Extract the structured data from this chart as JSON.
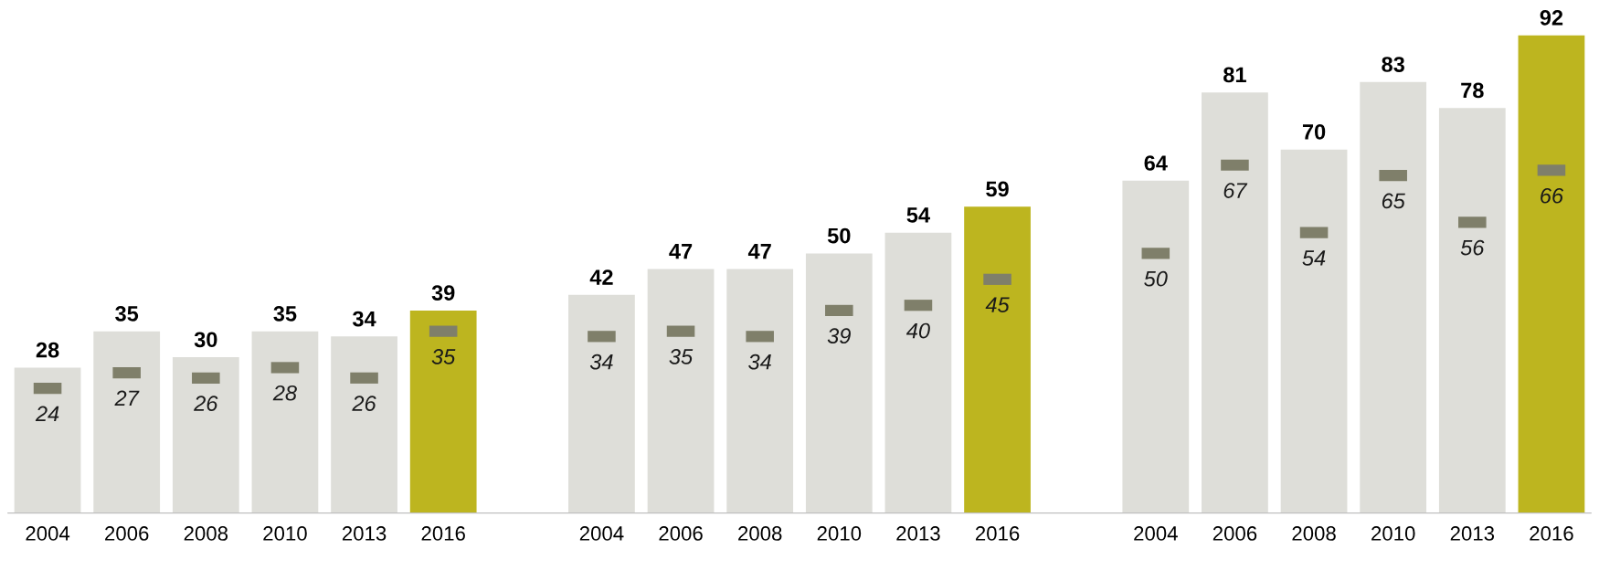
{
  "chart_data": {
    "type": "bar",
    "categories": [
      "2004",
      "2006",
      "2008",
      "2010",
      "2013",
      "2016",
      null,
      "2004",
      "2006",
      "2008",
      "2010",
      "2013",
      "2016",
      null,
      "2004",
      "2006",
      "2008",
      "2010",
      "2013",
      "2016"
    ],
    "series": [
      {
        "values": [
          28,
          35,
          30,
          35,
          34,
          39,
          null,
          42,
          47,
          47,
          50,
          54,
          59,
          null,
          64,
          81,
          70,
          83,
          78,
          92
        ],
        "colors": [
          "#deded9",
          "#deded9",
          "#deded9",
          "#deded9",
          "#deded9",
          "#bdb51f",
          null,
          "#deded9",
          "#deded9",
          "#deded9",
          "#deded9",
          "#deded9",
          "#bdb51f",
          null,
          "#deded9",
          "#deded9",
          "#deded9",
          "#deded9",
          "#deded9",
          "#bdb51f"
        ],
        "data_labels": true
      },
      {
        "type": "scatter",
        "color": "#7f7f6a",
        "values": [
          24,
          27,
          26,
          28,
          26,
          35,
          null,
          34,
          35,
          34,
          39,
          40,
          45,
          null,
          50,
          67,
          54,
          65,
          56,
          66
        ],
        "data_labels": true
      }
    ],
    "tick_labels": "x",
    "grid": false,
    "legend": false
  }
}
